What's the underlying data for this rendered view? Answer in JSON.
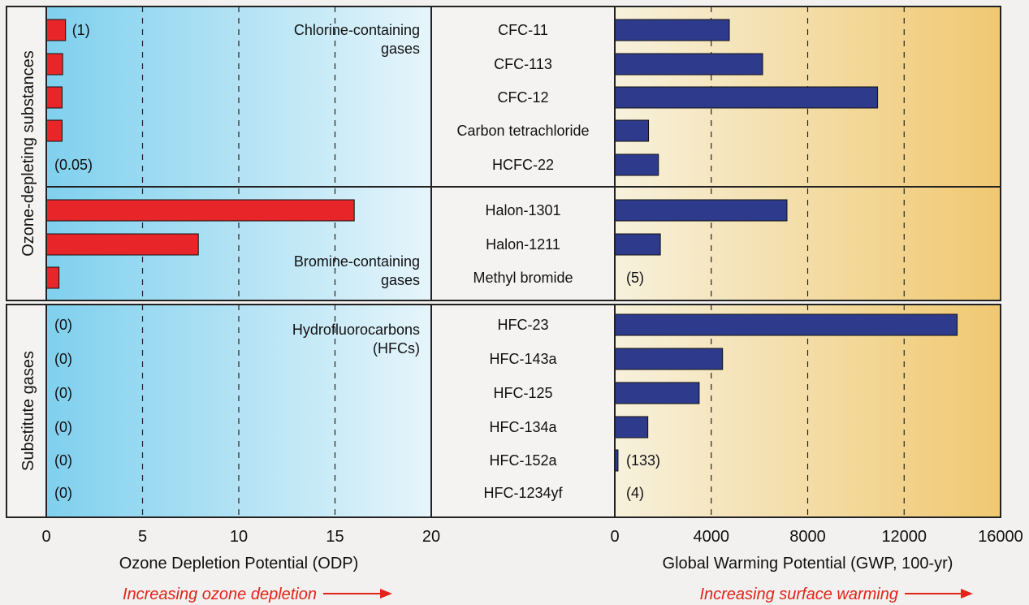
{
  "groups": [
    {
      "label": "Ozone-depleting substances"
    },
    {
      "label": "Substitute gases"
    }
  ],
  "sections": {
    "chlorine": [
      "Chlorine-containing",
      "gases"
    ],
    "bromine": [
      "Bromine-containing",
      "gases"
    ],
    "hfc": [
      "Hydrofluorocarbons",
      "(HFCs)"
    ]
  },
  "arrows": {
    "left": "Increasing ozone depletion",
    "right": "Increasing surface warming"
  },
  "colors": {
    "odp_bar": "#e8262a",
    "gwp_bar": "#2e3a8c",
    "odp_bg_start": "#7fd0ee",
    "odp_bg_end": "#e6f5fb",
    "gwp_bg_start": "#f7f1dc",
    "gwp_bg_end": "#f0c870"
  },
  "chart_data": [
    {
      "type": "bar",
      "orientation": "horizontal",
      "xlabel": "Ozone Depletion Potential (ODP)",
      "xlim": [
        0,
        20
      ],
      "xticks": [
        0,
        5,
        10,
        15,
        20
      ],
      "grid": "dashed vertical",
      "categories": [
        "CFC-11",
        "CFC-113",
        "CFC-12",
        "Carbon tetrachloride",
        "HCFC-22",
        "Halon-1301",
        "Halon-1211",
        "Methyl bromide",
        "HFC-23",
        "HFC-143a",
        "HFC-125",
        "HFC-134a",
        "HFC-152a",
        "HFC-1234yf"
      ],
      "values": [
        1,
        0.85,
        0.82,
        0.82,
        0.05,
        16,
        7.9,
        0.66,
        0,
        0,
        0,
        0,
        0,
        0
      ],
      "annotations": [
        {
          "category": "CFC-11",
          "text": "(1)"
        },
        {
          "category": "HCFC-22",
          "text": "(0.05)"
        },
        {
          "category": "HFC-23",
          "text": "(0)"
        },
        {
          "category": "HFC-143a",
          "text": "(0)"
        },
        {
          "category": "HFC-125",
          "text": "(0)"
        },
        {
          "category": "HFC-134a",
          "text": "(0)"
        },
        {
          "category": "HFC-152a",
          "text": "(0)"
        },
        {
          "category": "HFC-1234yf",
          "text": "(0)"
        }
      ]
    },
    {
      "type": "bar",
      "orientation": "horizontal",
      "xlabel": "Global Warming Potential (GWP, 100-yr)",
      "xlim": [
        0,
        16000
      ],
      "xticks": [
        0,
        4000,
        8000,
        12000,
        16000
      ],
      "grid": "dashed vertical",
      "categories": [
        "CFC-11",
        "CFC-113",
        "CFC-12",
        "Carbon tetrachloride",
        "HCFC-22",
        "Halon-1301",
        "Halon-1211",
        "Methyl bromide",
        "HFC-23",
        "HFC-143a",
        "HFC-125",
        "HFC-134a",
        "HFC-152a",
        "HFC-1234yf"
      ],
      "values": [
        4750,
        6130,
        10900,
        1400,
        1810,
        7140,
        1890,
        5,
        14200,
        4470,
        3500,
        1370,
        133,
        4
      ],
      "annotations": [
        {
          "category": "Methyl bromide",
          "text": "(5)"
        },
        {
          "category": "HFC-152a",
          "text": "(133)"
        },
        {
          "category": "HFC-1234yf",
          "text": "(4)"
        }
      ]
    }
  ]
}
